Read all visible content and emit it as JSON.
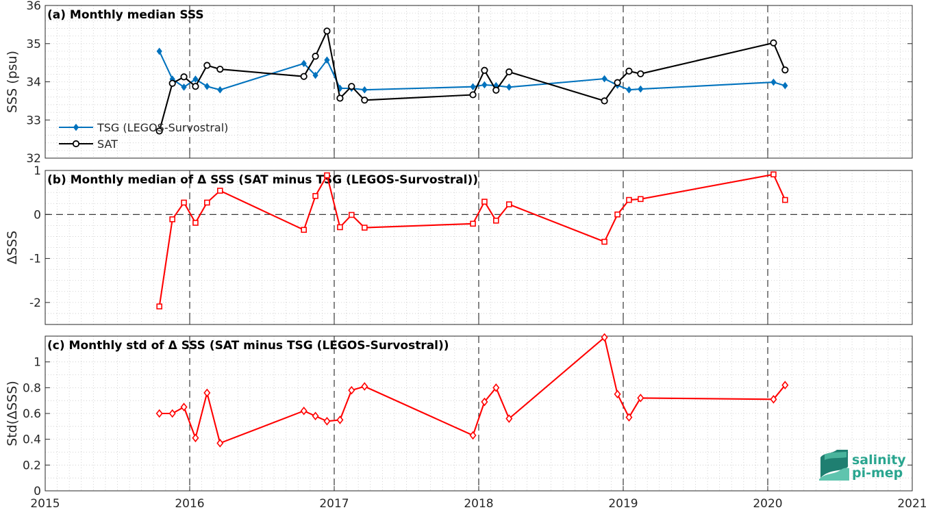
{
  "chart_data": [
    {
      "type": "line",
      "title": "(a) Monthly median SSS",
      "xlabel": "",
      "ylabel": "SSS (psu)",
      "xlim": [
        2015,
        2021
      ],
      "ylim": [
        32,
        36
      ],
      "yticks": [
        "32",
        "33",
        "34",
        "35",
        "36"
      ],
      "grid": true,
      "legend_placement": "bottom-left",
      "series": [
        {
          "name": "TSG (LEGOS-Survostral)",
          "color": "#0072bd",
          "marker": "diamond-filled",
          "x": [
            2015.79,
            2015.88,
            2015.96,
            2016.04,
            2016.12,
            2016.21,
            2016.79,
            2016.87,
            2016.95,
            2017.04,
            2017.12,
            2017.21,
            2017.96,
            2018.04,
            2018.12,
            2018.21,
            2018.87,
            2018.96,
            2019.04,
            2019.12,
            2020.04,
            2020.12
          ],
          "values": [
            34.8,
            34.07,
            33.86,
            34.07,
            33.88,
            33.79,
            34.48,
            34.17,
            34.57,
            33.83,
            33.83,
            33.79,
            33.87,
            33.92,
            33.9,
            33.86,
            34.08,
            33.91,
            33.79,
            33.81,
            33.99,
            33.9
          ]
        },
        {
          "name": "SAT",
          "color": "#000000",
          "marker": "circle-open",
          "x": [
            2015.79,
            2015.88,
            2015.96,
            2016.04,
            2016.12,
            2016.21,
            2016.79,
            2016.87,
            2016.95,
            2017.04,
            2017.12,
            2017.21,
            2017.96,
            2018.04,
            2018.12,
            2018.21,
            2018.87,
            2018.96,
            2019.04,
            2019.12,
            2020.04,
            2020.12
          ],
          "values": [
            32.71,
            33.96,
            34.13,
            33.88,
            34.43,
            34.33,
            34.14,
            34.67,
            35.33,
            33.57,
            33.88,
            33.52,
            33.66,
            34.3,
            33.78,
            34.26,
            33.5,
            33.98,
            34.28,
            34.21,
            35.02,
            34.31
          ]
        }
      ]
    },
    {
      "type": "line",
      "title": "(b) Monthly median of Δ SSS (SAT minus TSG (LEGOS-Survostral))",
      "xlabel": "",
      "ylabel": "ΔSSS",
      "xlim": [
        2015,
        2021
      ],
      "ylim": [
        -2.5,
        1
      ],
      "yticks": [
        "-2",
        "-1",
        "0",
        "1"
      ],
      "grid": true,
      "reference_line": 0,
      "series": [
        {
          "color": "#ff0000",
          "marker": "square-open",
          "x": [
            2015.79,
            2015.88,
            2015.96,
            2016.04,
            2016.12,
            2016.21,
            2016.79,
            2016.87,
            2016.95,
            2017.04,
            2017.12,
            2017.21,
            2017.96,
            2018.04,
            2018.12,
            2018.21,
            2018.87,
            2018.96,
            2019.04,
            2019.12,
            2020.04,
            2020.12
          ],
          "values": [
            -2.09,
            -0.11,
            0.27,
            -0.19,
            0.27,
            0.54,
            -0.35,
            0.42,
            0.89,
            -0.29,
            -0.01,
            -0.3,
            -0.21,
            0.29,
            -0.14,
            0.23,
            -0.62,
            0.0,
            0.33,
            0.35,
            0.91,
            0.33
          ]
        }
      ]
    },
    {
      "type": "line",
      "title": "(c) Monthly std of Δ SSS (SAT minus TSG (LEGOS-Survostral))",
      "xlabel": "",
      "ylabel": "Std(ΔSSS)",
      "xlim": [
        2015,
        2021
      ],
      "ylim": [
        0,
        1.2
      ],
      "xticks": [
        "2015",
        "2016",
        "2017",
        "2018",
        "2019",
        "2020",
        "2021"
      ],
      "yticks": [
        "0",
        "0.2",
        "0.4",
        "0.6",
        "0.8",
        "1"
      ],
      "grid": true,
      "series": [
        {
          "color": "#ff0000",
          "marker": "diamond-open",
          "x": [
            2015.79,
            2015.88,
            2015.96,
            2016.04,
            2016.12,
            2016.21,
            2016.79,
            2016.87,
            2016.95,
            2017.04,
            2017.12,
            2017.21,
            2017.96,
            2018.04,
            2018.12,
            2018.21,
            2018.87,
            2018.96,
            2019.04,
            2019.12,
            2020.04,
            2020.12
          ],
          "values": [
            0.6,
            0.6,
            0.65,
            0.41,
            0.76,
            0.37,
            0.62,
            0.58,
            0.54,
            0.55,
            0.78,
            0.81,
            0.43,
            0.69,
            0.8,
            0.56,
            1.19,
            0.75,
            0.57,
            0.72,
            0.71,
            0.82
          ]
        }
      ]
    }
  ],
  "logo": {
    "line1": "salinity",
    "line2": "pi-mep",
    "color": "#2aa58f"
  }
}
